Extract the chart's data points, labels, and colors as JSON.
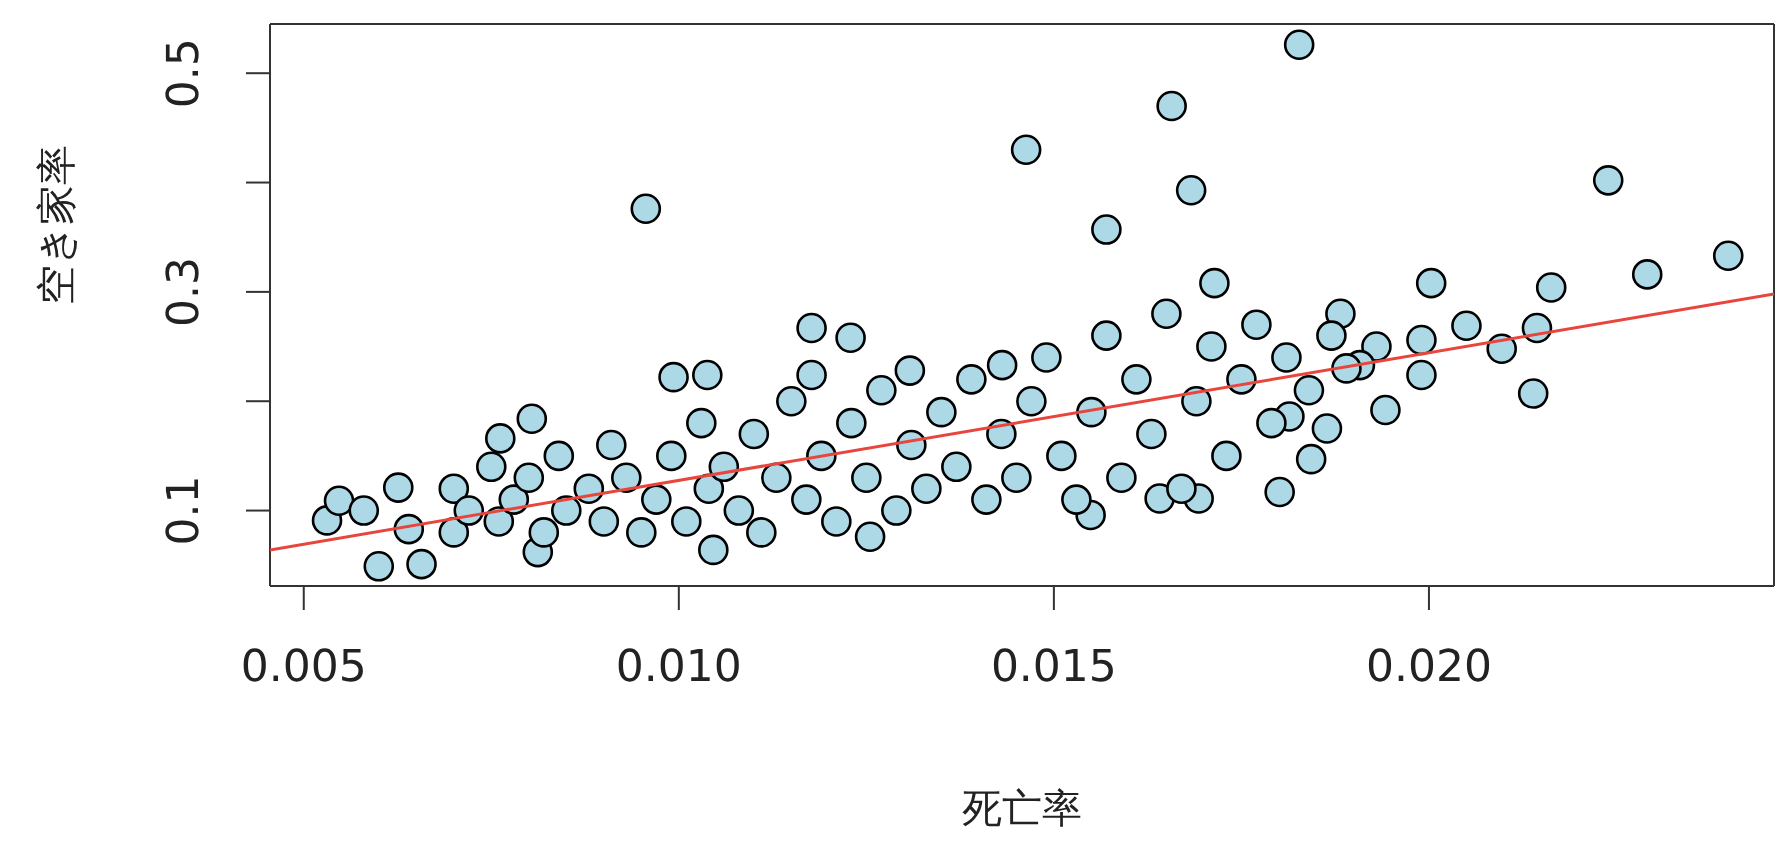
{
  "chart_data": {
    "type": "scatter",
    "xlabel": "死亡率",
    "ylabel": "空き家率",
    "xlim": [
      0.00455,
      0.0246
    ],
    "ylim": [
      0.031,
      0.545
    ],
    "xticks": [
      0.005,
      {
        "value": 0.01,
        "label": "0.010"
      },
      0.015,
      {
        "value": 0.02,
        "label": "0.020"
      }
    ],
    "yticks": [
      0.1,
      {
        "value": 0.2,
        "label": null
      },
      0.3,
      {
        "value": 0.4,
        "label": null
      },
      0.5
    ],
    "marker": "circle",
    "series": [
      {
        "color": "#add8e6",
        "x": [
          0.00531,
          0.00547,
          0.0058,
          0.006,
          0.00657,
          0.00626,
          0.0064,
          0.00956,
          0.01463,
          0.01827,
          0.01657,
          0.01683,
          0.0157,
          0.02239,
          0.02399,
          0.02291,
          0.02163,
          0.02003,
          0.0205,
          0.02097,
          0.02144,
          0.02139,
          0.0199,
          0.0199,
          0.01942,
          0.0193,
          0.01908,
          0.01882,
          0.01801,
          0.01843,
          0.01864,
          0.01714,
          0.01549,
          0.01641,
          0.01693,
          0.01814,
          0.01177,
          0.01229,
          0.00993,
          0.01038,
          0.00804,
          0.00762,
          0.01255,
          0.01046,
          0.00812,
          0.01177,
          0.01308,
          0.01431,
          0.007,
          0.007,
          0.0072,
          0.0075,
          0.0076,
          0.0078,
          0.008,
          0.0082,
          0.0084,
          0.0085,
          0.0088,
          0.009,
          0.0091,
          0.0093,
          0.0095,
          0.0097,
          0.0099,
          0.0101,
          0.0103,
          0.0104,
          0.0106,
          0.0108,
          0.011,
          0.0111,
          0.0113,
          0.0115,
          0.0117,
          0.0119,
          0.0121,
          0.0123,
          0.0125,
          0.0127,
          0.0129,
          0.0131,
          0.0133,
          0.0135,
          0.0137,
          0.0139,
          0.0141,
          0.0143,
          0.0145,
          0.0147,
          0.0149,
          0.0151,
          0.0153,
          0.0155,
          0.0157,
          0.0159,
          0.0161,
          0.0163,
          0.0165,
          0.0167,
          0.0169,
          0.0171,
          0.0173,
          0.0175,
          0.0177,
          0.0179,
          0.0181,
          0.0184,
          0.0187,
          0.0189
        ],
        "values": [
          0.091,
          0.109,
          0.1,
          0.049,
          0.051,
          0.121,
          0.083,
          0.376,
          0.43,
          0.526,
          0.47,
          0.393,
          0.357,
          0.402,
          0.333,
          0.316,
          0.304,
          0.308,
          0.269,
          0.248,
          0.267,
          0.207,
          0.256,
          0.224,
          0.192,
          0.25,
          0.233,
          0.28,
          0.117,
          0.147,
          0.175,
          0.308,
          0.096,
          0.111,
          0.111,
          0.186,
          0.267,
          0.258,
          0.222,
          0.224,
          0.184,
          0.166,
          0.076,
          0.064,
          0.062,
          0.224,
          0.228,
          0.233,
          0.08,
          0.12,
          0.1,
          0.14,
          0.09,
          0.11,
          0.13,
          0.08,
          0.15,
          0.1,
          0.12,
          0.09,
          0.16,
          0.13,
          0.08,
          0.11,
          0.15,
          0.09,
          0.18,
          0.12,
          0.14,
          0.1,
          0.17,
          0.08,
          0.13,
          0.2,
          0.11,
          0.15,
          0.09,
          0.18,
          0.13,
          0.21,
          0.1,
          0.16,
          0.12,
          0.19,
          0.14,
          0.22,
          0.11,
          0.17,
          0.13,
          0.2,
          0.24,
          0.15,
          0.11,
          0.19,
          0.26,
          0.13,
          0.22,
          0.17,
          0.28,
          0.12,
          0.2,
          0.25,
          0.15,
          0.22,
          0.27,
          0.18,
          0.24,
          0.21,
          0.26,
          0.23
        ]
      },
      {
        "type": "line",
        "color": "#e8453c",
        "marker": "none",
        "x": [
          0.00455,
          0.0246
        ],
        "values": [
          0.064,
          0.298
        ]
      }
    ]
  }
}
